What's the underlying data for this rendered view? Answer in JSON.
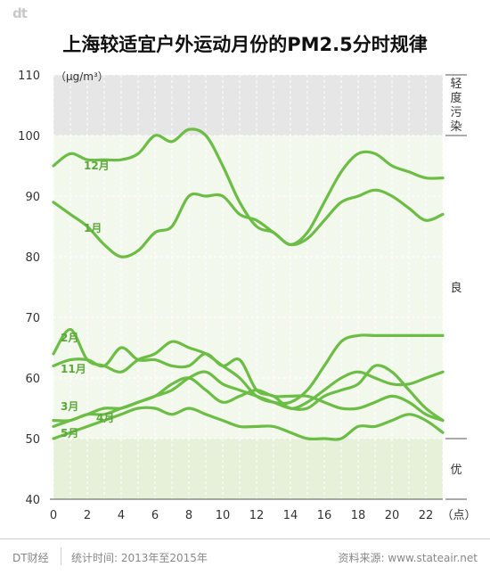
{
  "logo": "dt",
  "title": "上海较适宜户外运动月份的PM2.5分时规律",
  "footer": {
    "brand": "DT财经",
    "stat": "统计时间: 2013年至2015年",
    "source": "资料来源: www.stateair.net"
  },
  "chart_data": {
    "type": "line",
    "title": "上海较适宜户外运动月份的PM2.5分时规律",
    "ylabel": "（μg/m³）",
    "xlabel": "（点）",
    "ylim": [
      40,
      110
    ],
    "xlim": [
      0,
      23
    ],
    "y_ticks": [
      40,
      50,
      60,
      70,
      80,
      90,
      100,
      110
    ],
    "x_ticks": [
      0,
      2,
      4,
      6,
      8,
      10,
      12,
      14,
      16,
      18,
      20,
      22
    ],
    "bands": [
      {
        "label": "轻度污染",
        "from": 100,
        "to": 110,
        "color": "#e6e6e6"
      },
      {
        "label": "良",
        "from": 50,
        "to": 100,
        "color": "#f3f8ec"
      },
      {
        "label": "优",
        "from": 40,
        "to": 50,
        "color": "#e7f1d9"
      }
    ],
    "line_color": "#6cbd45",
    "grid": true,
    "x": [
      0,
      1,
      2,
      3,
      4,
      5,
      6,
      7,
      8,
      9,
      10,
      11,
      12,
      13,
      14,
      15,
      16,
      17,
      18,
      19,
      20,
      21,
      22,
      23
    ],
    "series": [
      {
        "name": "12月",
        "values": [
          95,
          97,
          96,
          96,
          96,
          97,
          100,
          99,
          101,
          100,
          95,
          89,
          85,
          84,
          82,
          84,
          89,
          94,
          97,
          97,
          95,
          94,
          93,
          93
        ]
      },
      {
        "name": "1月",
        "values": [
          89,
          87,
          85,
          82,
          80,
          81,
          84,
          85,
          90,
          90,
          90,
          87,
          86,
          84,
          82,
          83,
          86,
          89,
          90,
          91,
          90,
          88,
          86,
          87
        ]
      },
      {
        "name": "2月",
        "values": [
          64,
          68,
          63,
          62,
          61,
          63,
          64,
          66,
          65,
          64,
          62,
          60,
          57,
          56,
          56,
          58,
          62,
          66,
          67,
          67,
          67,
          67,
          67,
          67
        ]
      },
      {
        "name": "11月",
        "values": [
          62,
          63,
          63,
          62,
          65,
          63,
          63,
          62,
          62,
          64,
          62,
          63,
          58,
          57,
          55,
          56,
          58,
          60,
          61,
          60,
          59,
          59,
          60,
          61
        ]
      },
      {
        "name": "3月",
        "values": [
          53,
          53,
          54,
          54,
          55,
          56,
          57,
          59,
          60,
          58,
          56,
          57,
          58,
          57,
          57,
          57,
          56,
          55,
          55,
          56,
          57,
          56,
          54,
          53
        ]
      },
      {
        "name": "4月",
        "values": [
          52,
          53,
          54,
          55,
          55,
          56,
          57,
          58,
          60,
          61,
          59,
          58,
          57,
          56,
          55,
          55,
          57,
          58,
          59,
          62,
          61,
          58,
          55,
          53
        ]
      },
      {
        "name": "5月",
        "values": [
          50,
          51,
          52,
          53,
          54,
          55,
          55,
          54,
          55,
          54,
          53,
          52,
          52,
          52,
          51,
          50,
          50,
          50,
          52,
          52,
          53,
          54,
          53,
          51
        ]
      }
    ]
  }
}
